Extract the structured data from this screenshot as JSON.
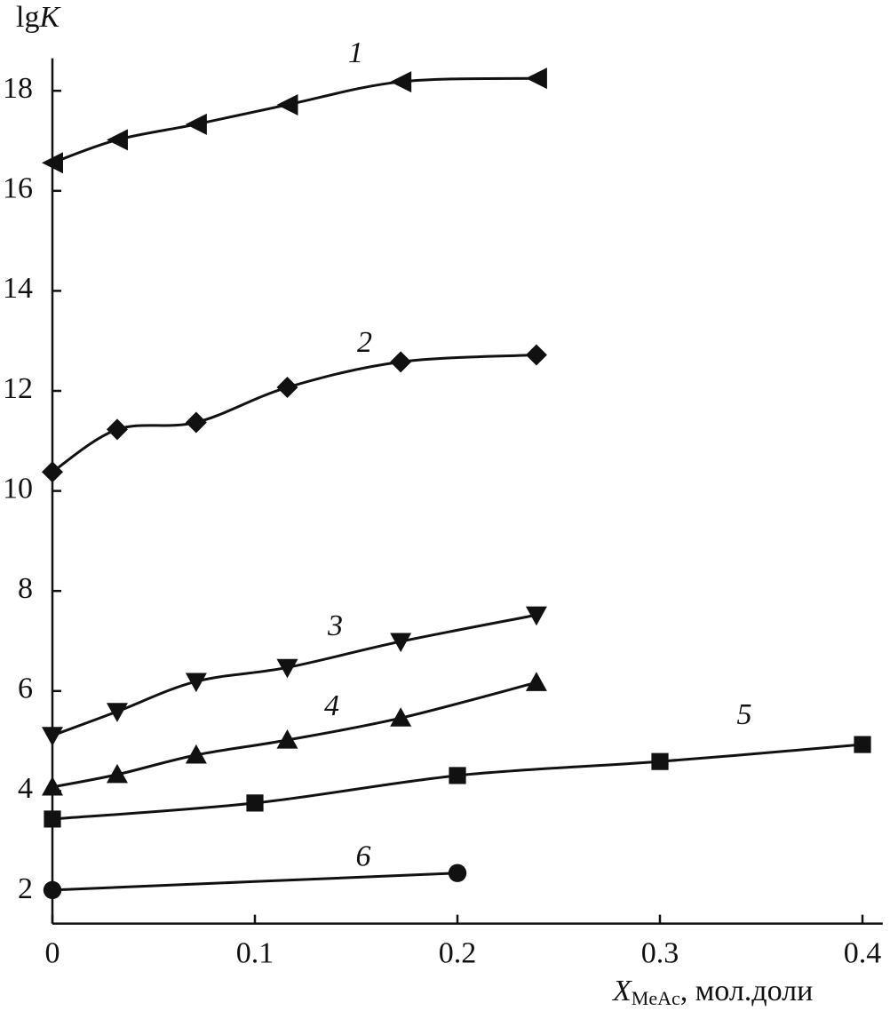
{
  "chart_data": {
    "type": "line",
    "x_label": {
      "symbol": "X",
      "subscript": "MeAc",
      "text": ", мол.доли"
    },
    "y_label": {
      "text": "lg",
      "symbol": "K"
    },
    "xlim": [
      0,
      0.41
    ],
    "ylim": [
      1.35,
      18.65
    ],
    "xticks": [
      0,
      0.1,
      0.2,
      0.3,
      0.4
    ],
    "yticks": [
      2,
      4,
      6,
      8,
      10,
      12,
      14,
      16,
      18
    ],
    "grid": false,
    "series": [
      {
        "name": "1",
        "color": "#111111",
        "marker": "triangle-left",
        "x": [
          0,
          0.032,
          0.071,
          0.116,
          0.172,
          0.239
        ],
        "values": [
          16.56,
          17.02,
          17.33,
          17.72,
          18.18,
          18.25
        ]
      },
      {
        "name": "2",
        "color": "#111111",
        "marker": "diamond",
        "x": [
          0,
          0.032,
          0.071,
          0.116,
          0.172,
          0.239
        ],
        "values": [
          10.38,
          11.23,
          11.37,
          12.07,
          12.58,
          12.72
        ]
      },
      {
        "name": "3",
        "color": "#111111",
        "marker": "triangle-down",
        "x": [
          0,
          0.032,
          0.071,
          0.116,
          0.172,
          0.239
        ],
        "values": [
          5.11,
          5.59,
          6.19,
          6.47,
          6.99,
          7.52
        ]
      },
      {
        "name": "4",
        "color": "#111111",
        "marker": "triangle-up",
        "x": [
          0,
          0.032,
          0.071,
          0.116,
          0.172,
          0.239
        ],
        "values": [
          4.08,
          4.33,
          4.72,
          5.02,
          5.46,
          6.17
        ]
      },
      {
        "name": "5",
        "color": "#111111",
        "marker": "square",
        "x": [
          0,
          0.1,
          0.2,
          0.3,
          0.4
        ],
        "values": [
          3.44,
          3.76,
          4.31,
          4.59,
          4.93
        ]
      },
      {
        "name": "6",
        "color": "#111111",
        "marker": "circle",
        "x": [
          0,
          0.2
        ],
        "values": [
          2.02,
          2.36
        ]
      }
    ]
  }
}
